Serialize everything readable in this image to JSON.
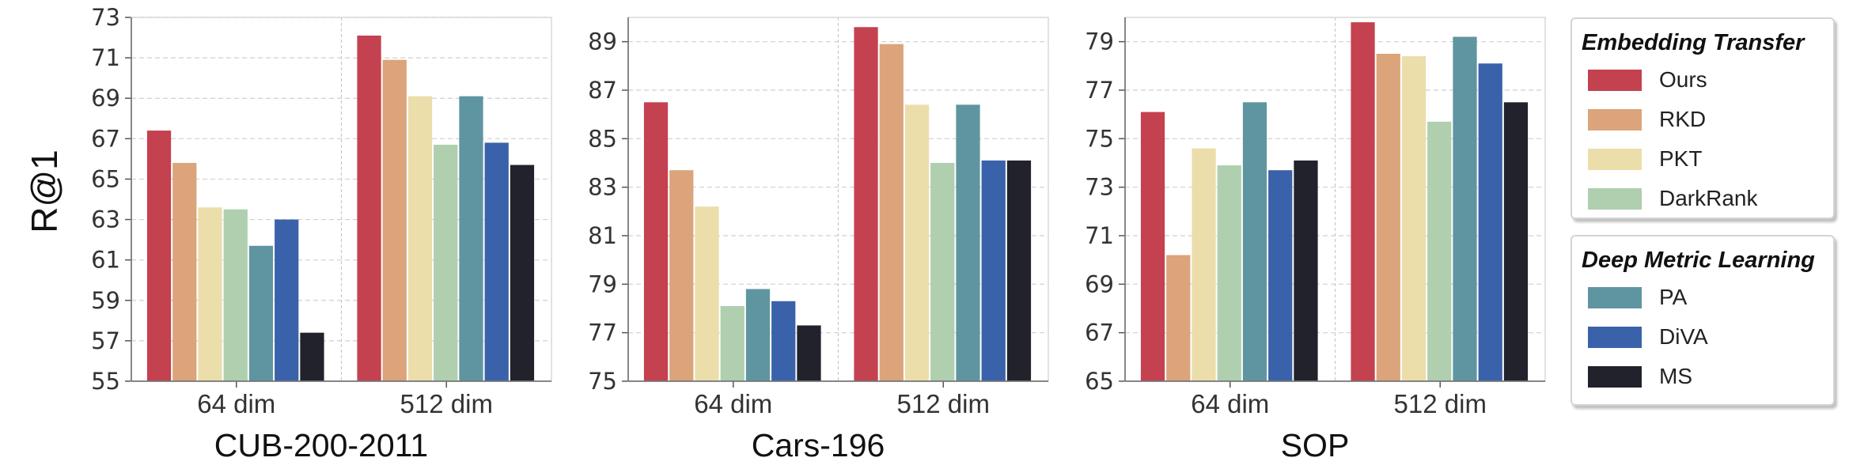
{
  "ylabel": "R@1",
  "colors": {
    "Ours": "#c44150",
    "RKD": "#dba47b",
    "PKT": "#ebdeaa",
    "DarkRank": "#afcfae",
    "PA": "#5f95a0",
    "DiVA": "#3a62aa",
    "MS": "#22222c"
  },
  "legend": [
    {
      "title": "Embedding Transfer",
      "items": [
        "Ours",
        "RKD",
        "PKT",
        "DarkRank"
      ]
    },
    {
      "title": "Deep Metric Learning",
      "items": [
        "PA",
        "DiVA",
        "MS"
      ]
    }
  ],
  "chart_data": [
    {
      "type": "bar",
      "title": "CUB-200-2011",
      "ylabel": "R@1",
      "categories": [
        "64 dim",
        "512 dim"
      ],
      "ylim": [
        55,
        73
      ],
      "yticks": [
        55,
        57,
        59,
        61,
        63,
        65,
        67,
        69,
        71,
        73
      ],
      "grid": true,
      "series": [
        {
          "name": "Ours",
          "values": [
            67.4,
            72.1
          ]
        },
        {
          "name": "RKD",
          "values": [
            65.8,
            70.9
          ]
        },
        {
          "name": "PKT",
          "values": [
            63.6,
            69.1
          ]
        },
        {
          "name": "DarkRank",
          "values": [
            63.5,
            66.7
          ]
        },
        {
          "name": "PA",
          "values": [
            61.7,
            69.1
          ]
        },
        {
          "name": "DiVA",
          "values": [
            63.0,
            66.8
          ]
        },
        {
          "name": "MS",
          "values": [
            57.4,
            65.7
          ]
        }
      ]
    },
    {
      "type": "bar",
      "title": "Cars-196",
      "categories": [
        "64 dim",
        "512 dim"
      ],
      "ylim": [
        75,
        90
      ],
      "yticks": [
        75,
        77,
        79,
        81,
        83,
        85,
        87,
        89
      ],
      "grid": true,
      "series": [
        {
          "name": "Ours",
          "values": [
            86.5,
            89.6
          ]
        },
        {
          "name": "RKD",
          "values": [
            83.7,
            88.9
          ]
        },
        {
          "name": "PKT",
          "values": [
            82.2,
            86.4
          ]
        },
        {
          "name": "DarkRank",
          "values": [
            78.1,
            84.0
          ]
        },
        {
          "name": "PA",
          "values": [
            78.8,
            86.4
          ]
        },
        {
          "name": "DiVA",
          "values": [
            78.3,
            84.1
          ]
        },
        {
          "name": "MS",
          "values": [
            77.3,
            84.1
          ]
        }
      ]
    },
    {
      "type": "bar",
      "title": "SOP",
      "categories": [
        "64 dim",
        "512 dim"
      ],
      "ylim": [
        65,
        80
      ],
      "yticks": [
        65,
        67,
        69,
        71,
        73,
        75,
        77,
        79
      ],
      "grid": true,
      "series": [
        {
          "name": "Ours",
          "values": [
            76.1,
            79.8
          ]
        },
        {
          "name": "RKD",
          "values": [
            70.2,
            78.5
          ]
        },
        {
          "name": "PKT",
          "values": [
            74.6,
            78.4
          ]
        },
        {
          "name": "DarkRank",
          "values": [
            73.9,
            75.7
          ]
        },
        {
          "name": "PA",
          "values": [
            76.5,
            79.2
          ]
        },
        {
          "name": "DiVA",
          "values": [
            73.7,
            78.1
          ]
        },
        {
          "name": "MS",
          "values": [
            74.1,
            76.5
          ]
        }
      ]
    }
  ]
}
